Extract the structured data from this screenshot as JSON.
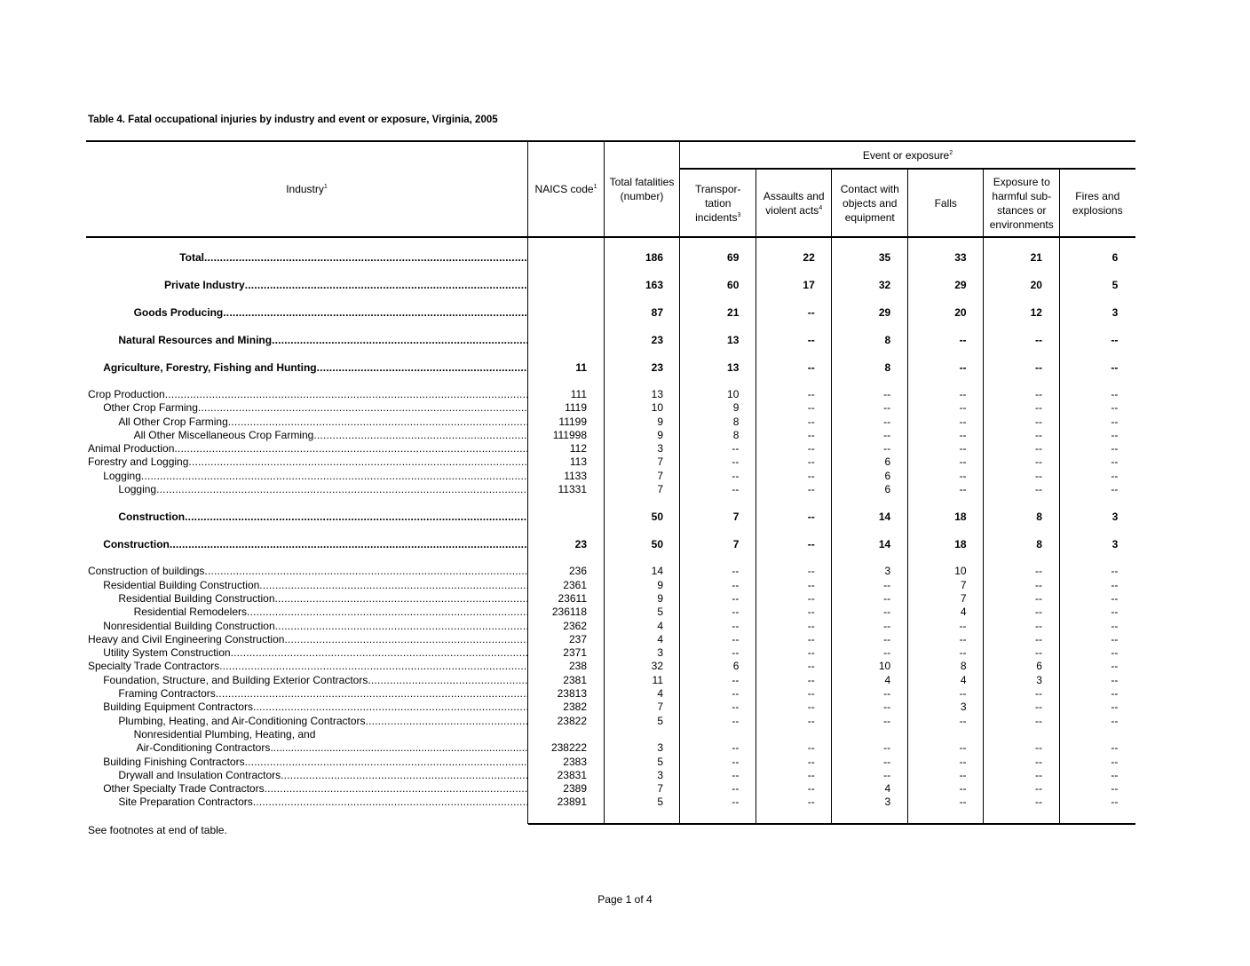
{
  "title": "Table 4. Fatal occupational injuries by industry and event or exposure,  Virginia, 2005",
  "header": {
    "industry": "Industry",
    "industry_sup": "1",
    "naics": "NAICS code",
    "naics_sup": "1",
    "total_l1": "Total fatalities",
    "total_l2": "(number)",
    "event_group": "Event or exposure",
    "event_group_sup": "2",
    "events": [
      {
        "lines": [
          "Transpor-",
          "tation",
          "incidents"
        ],
        "sup": "3"
      },
      {
        "lines": [
          "Assaults and",
          "violent acts"
        ],
        "sup": "4"
      },
      {
        "lines": [
          "Contact with",
          "objects and",
          "equipment"
        ],
        "sup": ""
      },
      {
        "lines": [
          "Falls"
        ],
        "sup": ""
      },
      {
        "lines": [
          "Exposure to",
          "harmful sub-",
          "stances or",
          "environments"
        ],
        "sup": ""
      },
      {
        "lines": [
          "Fires and",
          "explosions"
        ],
        "sup": ""
      }
    ]
  },
  "rows": [
    {
      "label": "Total",
      "bold": true,
      "level": 6,
      "values": [
        "",
        "186",
        "69",
        "22",
        "35",
        "33",
        "21",
        "6"
      ]
    },
    {
      "label": "Private Industry",
      "bold": true,
      "level": 5,
      "values": [
        "",
        "163",
        "60",
        "17",
        "32",
        "29",
        "20",
        "5"
      ]
    },
    {
      "label": "Goods Producing",
      "bold": true,
      "level": 3,
      "values": [
        "",
        "87",
        "21",
        "--",
        "29",
        "20",
        "12",
        "3"
      ]
    },
    {
      "label": "Natural Resources and Mining",
      "bold": true,
      "level": 2,
      "values": [
        "",
        "23",
        "13",
        "--",
        "8",
        "--",
        "--",
        "--"
      ]
    },
    {
      "label": "Agriculture, Forestry, Fishing and Hunting",
      "bold": true,
      "level": 1,
      "values": [
        "11",
        "23",
        "13",
        "--",
        "8",
        "--",
        "--",
        "--"
      ]
    },
    {
      "label": "Crop Production",
      "bold": false,
      "level": 0,
      "values": [
        "111",
        "13",
        "10",
        "--",
        "--",
        "--",
        "--",
        "--"
      ]
    },
    {
      "label": "Other Crop Farming",
      "bold": false,
      "level": 1,
      "values": [
        "1119",
        "10",
        "9",
        "--",
        "--",
        "--",
        "--",
        "--"
      ]
    },
    {
      "label": "All Other Crop Farming",
      "bold": false,
      "level": 2,
      "values": [
        "11199",
        "9",
        "8",
        "--",
        "--",
        "--",
        "--",
        "--"
      ]
    },
    {
      "label": "All Other Miscellaneous Crop Farming",
      "bold": false,
      "level": 3,
      "values": [
        "111998",
        "9",
        "8",
        "--",
        "--",
        "--",
        "--",
        "--"
      ]
    },
    {
      "label": "Animal Production",
      "bold": false,
      "level": 0,
      "values": [
        "112",
        "3",
        "--",
        "--",
        "--",
        "--",
        "--",
        "--"
      ]
    },
    {
      "label": "Forestry and Logging",
      "bold": false,
      "level": 0,
      "values": [
        "113",
        "7",
        "--",
        "--",
        "6",
        "--",
        "--",
        "--"
      ]
    },
    {
      "label": "Logging",
      "bold": false,
      "level": 1,
      "values": [
        "1133",
        "7",
        "--",
        "--",
        "6",
        "--",
        "--",
        "--"
      ]
    },
    {
      "label": "Logging",
      "bold": false,
      "level": 2,
      "values": [
        "11331",
        "7",
        "--",
        "--",
        "6",
        "--",
        "--",
        "--"
      ]
    },
    {
      "label": "Construction",
      "bold": true,
      "level": 2,
      "values": [
        "",
        "50",
        "7",
        "--",
        "14",
        "18",
        "8",
        "3"
      ]
    },
    {
      "label": "Construction",
      "bold": true,
      "level": 1,
      "values": [
        "23",
        "50",
        "7",
        "--",
        "14",
        "18",
        "8",
        "3"
      ]
    },
    {
      "label": "Construction of buildings",
      "bold": false,
      "level": 0,
      "values": [
        "236",
        "14",
        "--",
        "--",
        "3",
        "10",
        "--",
        "--"
      ]
    },
    {
      "label": "Residential Building Construction",
      "bold": false,
      "level": 1,
      "values": [
        "2361",
        "9",
        "--",
        "--",
        "--",
        "7",
        "--",
        "--"
      ]
    },
    {
      "label": "Residential Building Construction",
      "bold": false,
      "level": 2,
      "values": [
        "23611",
        "9",
        "--",
        "--",
        "--",
        "7",
        "--",
        "--"
      ]
    },
    {
      "label": "Residential Remodelers",
      "bold": false,
      "level": 3,
      "values": [
        "236118",
        "5",
        "--",
        "--",
        "--",
        "4",
        "--",
        "--"
      ]
    },
    {
      "label": "Nonresidential Building Construction",
      "bold": false,
      "level": 1,
      "values": [
        "2362",
        "4",
        "--",
        "--",
        "--",
        "--",
        "--",
        "--"
      ]
    },
    {
      "label": "Heavy and Civil Engineering Construction",
      "bold": false,
      "level": 0,
      "values": [
        "237",
        "4",
        "--",
        "--",
        "--",
        "--",
        "--",
        "--"
      ]
    },
    {
      "label": "Utility System Construction",
      "bold": false,
      "level": 1,
      "values": [
        "2371",
        "3",
        "--",
        "--",
        "--",
        "--",
        "--",
        "--"
      ]
    },
    {
      "label": "Specialty Trade Contractors",
      "bold": false,
      "level": 0,
      "values": [
        "238",
        "32",
        "6",
        "--",
        "10",
        "8",
        "6",
        "--"
      ]
    },
    {
      "label": "Foundation, Structure, and Building Exterior Contractors",
      "bold": false,
      "level": 1,
      "values": [
        "2381",
        "11",
        "--",
        "--",
        "4",
        "4",
        "3",
        "--"
      ]
    },
    {
      "label": "Framing Contractors",
      "bold": false,
      "level": 2,
      "values": [
        "23813",
        "4",
        "--",
        "--",
        "--",
        "--",
        "--",
        "--"
      ]
    },
    {
      "label": "Building Equipment Contractors",
      "bold": false,
      "level": 1,
      "values": [
        "2382",
        "7",
        "--",
        "--",
        "--",
        "3",
        "--",
        "--"
      ]
    },
    {
      "label": "Plumbing, Heating, and Air-Conditioning Contractors",
      "bold": false,
      "level": 2,
      "values": [
        "23822",
        "5",
        "--",
        "--",
        "--",
        "--",
        "--",
        "--"
      ]
    },
    {
      "label": "Nonresidential Plumbing, Heating, and",
      "label2": "Air-Conditioning Contractors",
      "bold": false,
      "level": 3,
      "values": [
        "238222",
        "3",
        "--",
        "--",
        "--",
        "--",
        "--",
        "--"
      ]
    },
    {
      "label": "Building Finishing Contractors",
      "bold": false,
      "level": 1,
      "values": [
        "2383",
        "5",
        "--",
        "--",
        "--",
        "--",
        "--",
        "--"
      ]
    },
    {
      "label": "Drywall and Insulation Contractors",
      "bold": false,
      "level": 2,
      "values": [
        "23831",
        "3",
        "--",
        "--",
        "--",
        "--",
        "--",
        "--"
      ]
    },
    {
      "label": "Other Specialty Trade Contractors",
      "bold": false,
      "level": 1,
      "values": [
        "2389",
        "7",
        "--",
        "--",
        "4",
        "--",
        "--",
        "--"
      ]
    },
    {
      "label": "Site Preparation Contractors",
      "bold": false,
      "level": 2,
      "values": [
        "23891",
        "5",
        "--",
        "--",
        "3",
        "--",
        "--",
        "--"
      ]
    }
  ],
  "footnote": "See footnotes at end of table.",
  "page_label": "Page 1 of 4"
}
